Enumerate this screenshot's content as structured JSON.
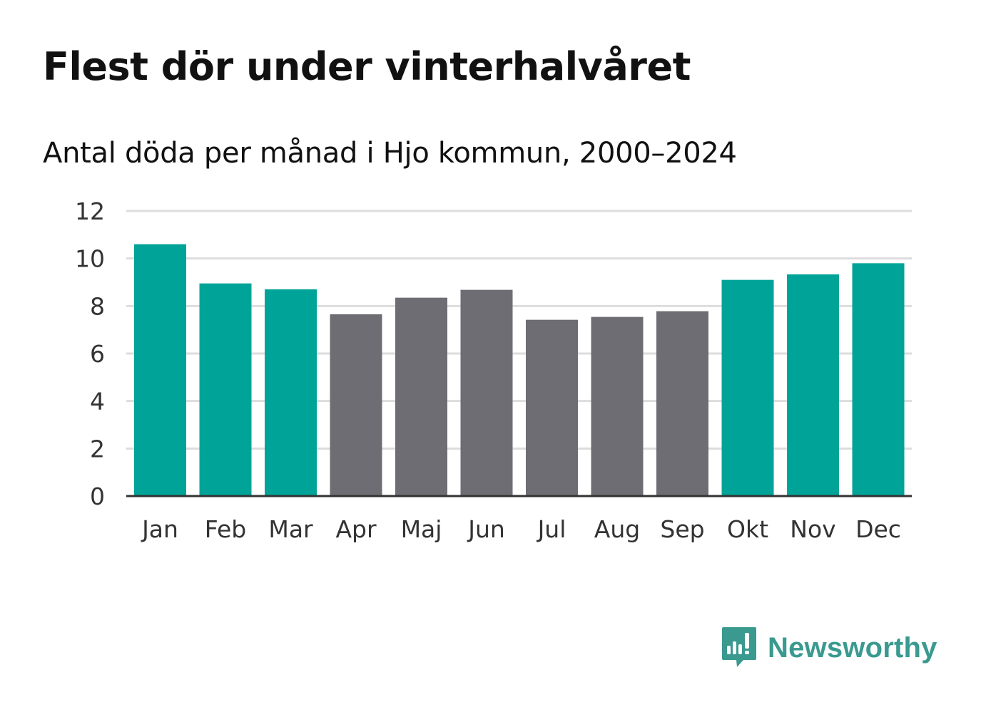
{
  "title": "Flest dör under vinterhalvåret",
  "subtitle": "Antal döda per månad i Hjo kommun, 2000–2024",
  "brand": {
    "name": "Newsworthy",
    "icon": "newsworthy-logo-icon",
    "color": "#3a9a8f"
  },
  "colors": {
    "winter": "#00a398",
    "summer": "#6e6d73",
    "grid": "#dddddd",
    "axis": "#333333"
  },
  "chart_data": {
    "type": "bar",
    "title": "Flest dör under vinterhalvåret",
    "subtitle": "Antal döda per månad i Hjo kommun, 2000–2024",
    "xlabel": "",
    "ylabel": "",
    "ylim": [
      0,
      12
    ],
    "yticks": [
      0,
      2,
      4,
      6,
      8,
      10,
      12
    ],
    "grid": true,
    "categories": [
      "Jan",
      "Feb",
      "Mar",
      "Apr",
      "Maj",
      "Jun",
      "Jul",
      "Aug",
      "Sep",
      "Okt",
      "Nov",
      "Dec"
    ],
    "values": [
      10.6,
      8.95,
      8.7,
      7.65,
      8.35,
      8.68,
      7.42,
      7.54,
      7.78,
      9.1,
      9.33,
      9.8
    ],
    "season": [
      "winter",
      "winter",
      "winter",
      "summer",
      "summer",
      "summer",
      "summer",
      "summer",
      "summer",
      "winter",
      "winter",
      "winter"
    ]
  }
}
